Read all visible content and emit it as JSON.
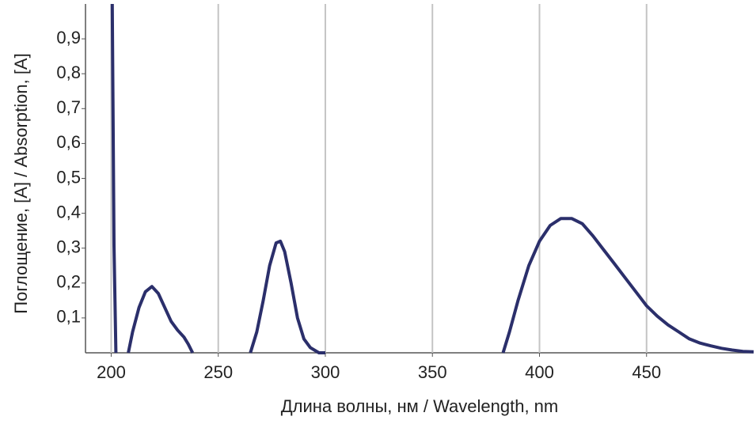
{
  "chart_data": {
    "type": "line",
    "x_label": "Длина волны, нм / Wavelength, nm",
    "y_label": "Поглощение, [A] / Absorption, [A]",
    "x": [
      200.5,
      201.3,
      202.2,
      205,
      208,
      210,
      213,
      216,
      219,
      222,
      225,
      228,
      231,
      234,
      236,
      238,
      250,
      265,
      268,
      271,
      274,
      277,
      279,
      281,
      284,
      287,
      290,
      293,
      297,
      300,
      340,
      383,
      386,
      390,
      395,
      400,
      405,
      410,
      415,
      420,
      425,
      430,
      435,
      440,
      445,
      450,
      455,
      460,
      465,
      470,
      475,
      480,
      485,
      490,
      495,
      500
    ],
    "series": [
      {
        "color": "#2b2f6b",
        "values": [
          1.0,
          0.31,
          0.0,
          null,
          0.0,
          0.06,
          0.13,
          0.175,
          0.19,
          0.17,
          0.13,
          0.09,
          0.065,
          0.045,
          0.025,
          0.0,
          null,
          0.0,
          0.06,
          0.15,
          0.25,
          0.315,
          0.32,
          0.29,
          0.2,
          0.1,
          0.04,
          0.015,
          0.0,
          0.0,
          null,
          0.0,
          0.06,
          0.15,
          0.25,
          0.32,
          0.365,
          0.385,
          0.385,
          0.37,
          0.335,
          0.295,
          0.255,
          0.215,
          0.175,
          0.135,
          0.105,
          0.08,
          0.06,
          0.04,
          0.028,
          0.02,
          0.013,
          0.008,
          0.004,
          0.003
        ]
      }
    ],
    "xlim": [
      188,
      500
    ],
    "ylim": [
      0,
      1.0
    ],
    "xticks": [
      200,
      250,
      300,
      350,
      400,
      450
    ],
    "yticks": [
      {
        "value": 0.1,
        "label": "0,1"
      },
      {
        "value": 0.2,
        "label": "0,2"
      },
      {
        "value": 0.3,
        "label": "0,3"
      },
      {
        "value": 0.4,
        "label": "0,4"
      },
      {
        "value": 0.5,
        "label": "0,5"
      },
      {
        "value": 0.6,
        "label": "0,6"
      },
      {
        "value": 0.7,
        "label": "0,7"
      },
      {
        "value": 0.8,
        "label": "0,8"
      },
      {
        "value": 0.9,
        "label": "0,9"
      }
    ],
    "grid": "x"
  }
}
